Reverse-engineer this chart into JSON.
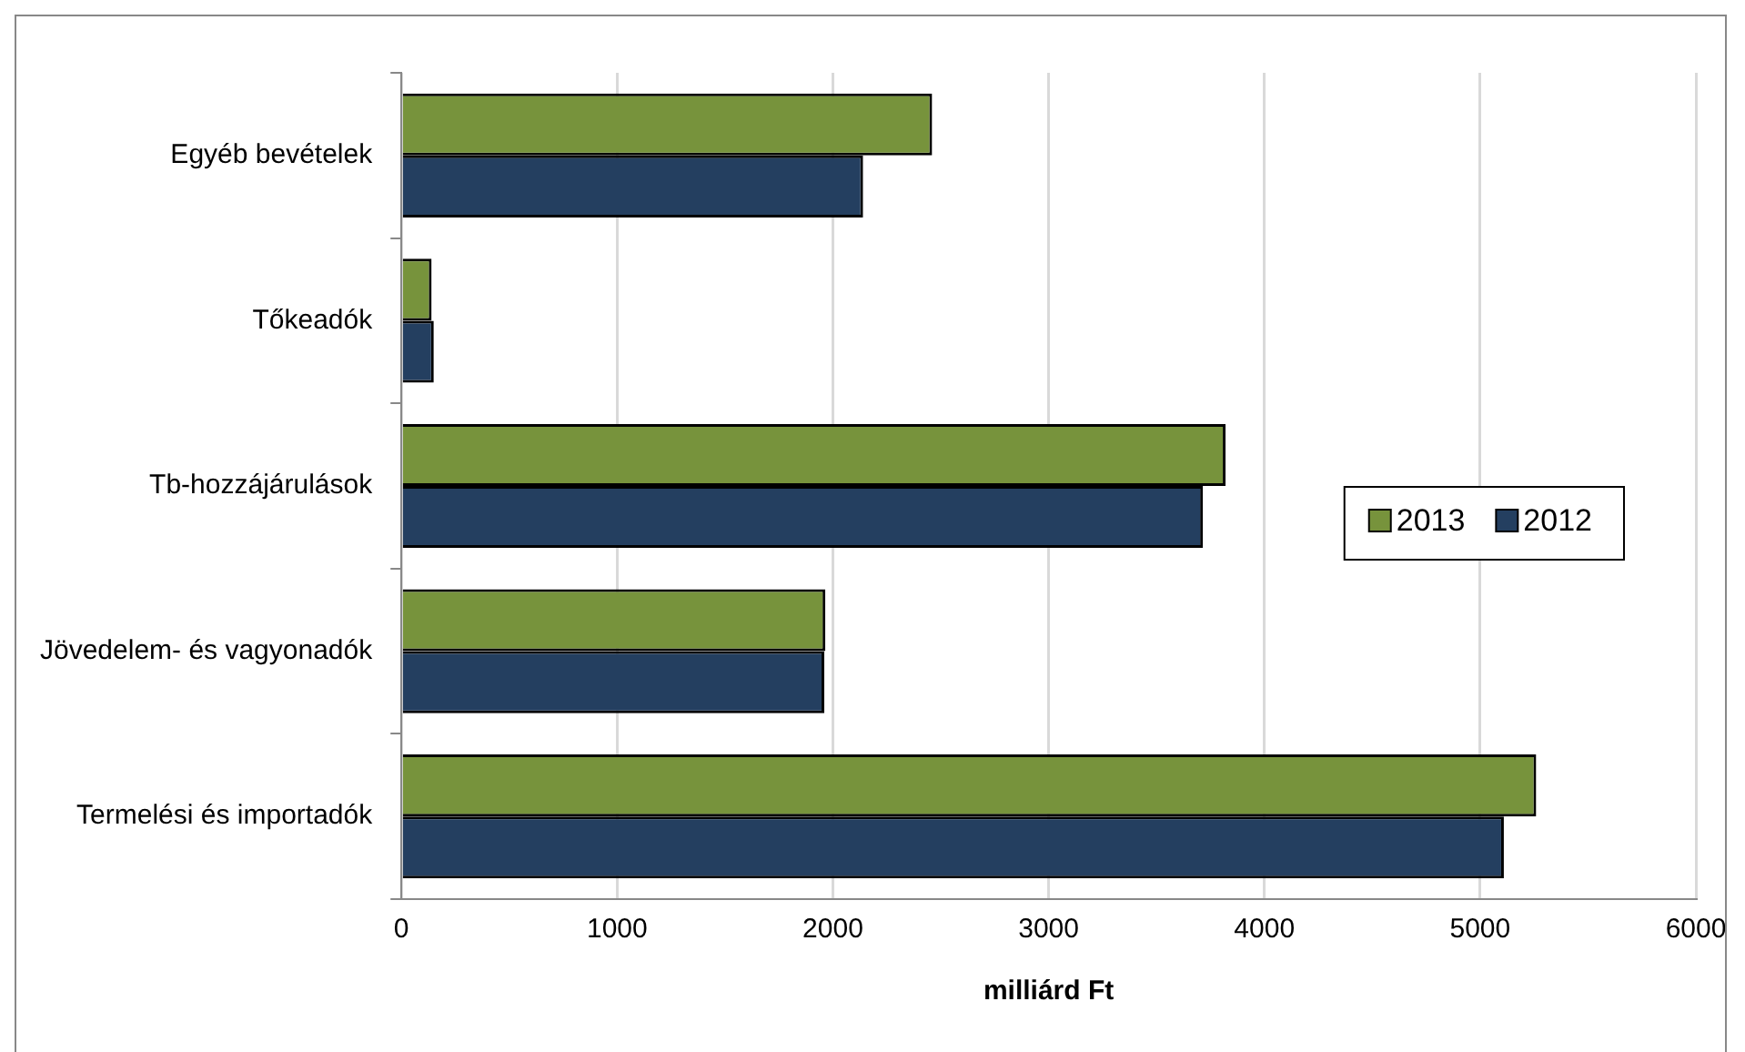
{
  "chart_data": {
    "type": "bar",
    "orientation": "horizontal",
    "xlabel": "milliárd Ft",
    "categories": [
      "Egyéb bevételek",
      "Tőkeadók",
      "Tb-hozzájárulások",
      "Jövedelem- és vagyonadók",
      "Termelési és importadók"
    ],
    "series": [
      {
        "name": "2013",
        "color": "#77933c",
        "values": [
          2460,
          140,
          3820,
          1965,
          5260
        ]
      },
      {
        "name": "2012",
        "color": "#243f60",
        "values": [
          2140,
          150,
          3715,
          1960,
          5110
        ]
      }
    ],
    "xlim": [
      0,
      6000
    ],
    "xticks": [
      0,
      1000,
      2000,
      3000,
      4000,
      5000,
      6000
    ],
    "grid": "x",
    "legend": "right"
  }
}
